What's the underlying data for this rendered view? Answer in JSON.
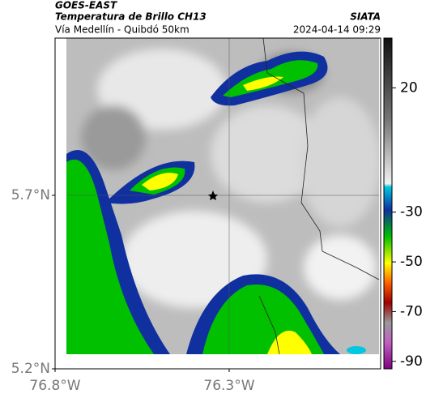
{
  "header": {
    "source": "GOES-EAST",
    "product": "Temperatura de Brillo CH13",
    "org": "SIATA",
    "route": "Vía Medellín - Quibdó 50km",
    "timestamp": "2024-04-14 09:29"
  },
  "map": {
    "xlim": [
      -76.8,
      -75.865
    ],
    "ylim": [
      5.2,
      6.153
    ],
    "xticks": [
      {
        "value": -76.8,
        "label": "76.8°W"
      },
      {
        "value": -76.3,
        "label": "76.3°W"
      }
    ],
    "yticks": [
      {
        "value": 5.2,
        "label": "5.2°N"
      },
      {
        "value": 5.7,
        "label": "5.7°N"
      }
    ],
    "grid": true
  },
  "colorbar": {
    "lim": [
      -93,
      40
    ],
    "ticks": [
      20,
      -30,
      -50,
      -70,
      -90
    ]
  }
}
